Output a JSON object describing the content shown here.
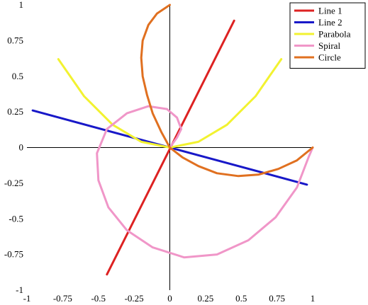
{
  "chart_data": {
    "type": "line",
    "title": "",
    "xlabel": "",
    "ylabel": "",
    "xlim": [
      -1,
      1
    ],
    "ylim": [
      -1,
      1
    ],
    "grid": false,
    "axes_through_origin": true,
    "legend_position": "top-right",
    "x_ticks": [
      "-1",
      "-0.75",
      "-0.5",
      "-0.25",
      "0",
      "0.25",
      "0.5",
      "0.75",
      "1"
    ],
    "y_ticks": [
      "1",
      "0.75",
      "0.5",
      "0.25",
      "0",
      "-0.25",
      "-0.5",
      "-0.75",
      "-1"
    ],
    "series": [
      {
        "name": "Line 1",
        "color": "#dd2222",
        "points": [
          [
            -0.44,
            -0.89
          ],
          [
            0.45,
            0.89
          ]
        ]
      },
      {
        "name": "Line 2",
        "color": "#1818c8",
        "points": [
          [
            -0.96,
            0.26
          ],
          [
            0.96,
            -0.26
          ]
        ]
      },
      {
        "name": "Parabola",
        "color": "#f2f230",
        "points": [
          [
            -0.78,
            0.62
          ],
          [
            -0.6,
            0.36
          ],
          [
            -0.4,
            0.16
          ],
          [
            -0.2,
            0.04
          ],
          [
            0,
            0
          ],
          [
            0.2,
            0.04
          ],
          [
            0.4,
            0.16
          ],
          [
            0.6,
            0.36
          ],
          [
            0.78,
            0.62
          ]
        ]
      },
      {
        "name": "Spiral",
        "color": "#f096c8",
        "points": [
          [
            0,
            0
          ],
          [
            0.05,
            0.07
          ],
          [
            0.08,
            0.13
          ],
          [
            0.05,
            0.21
          ],
          [
            -0.02,
            0.27
          ],
          [
            -0.15,
            0.29
          ],
          [
            -0.3,
            0.24
          ],
          [
            -0.44,
            0.13
          ],
          [
            -0.51,
            -0.04
          ],
          [
            -0.5,
            -0.23
          ],
          [
            -0.43,
            -0.42
          ],
          [
            -0.3,
            -0.58
          ],
          [
            -0.12,
            -0.7
          ],
          [
            0.1,
            -0.77
          ],
          [
            0.33,
            -0.75
          ],
          [
            0.55,
            -0.65
          ],
          [
            0.74,
            -0.49
          ],
          [
            0.89,
            -0.28
          ],
          [
            0.97,
            -0.07
          ],
          [
            1.0,
            0.0
          ]
        ]
      },
      {
        "name": "Circle",
        "color": "#e07020",
        "points": [
          [
            0,
            1
          ],
          [
            -0.09,
            0.94
          ],
          [
            -0.15,
            0.86
          ],
          [
            -0.19,
            0.75
          ],
          [
            -0.2,
            0.63
          ],
          [
            -0.19,
            0.5
          ],
          [
            -0.16,
            0.37
          ],
          [
            -0.12,
            0.24
          ],
          [
            -0.06,
            0.11
          ],
          [
            0,
            0
          ],
          [
            0.09,
            -0.07
          ],
          [
            0.2,
            -0.13
          ],
          [
            0.33,
            -0.18
          ],
          [
            0.48,
            -0.2
          ],
          [
            0.62,
            -0.19
          ],
          [
            0.76,
            -0.15
          ],
          [
            0.89,
            -0.09
          ],
          [
            1.0,
            0.0
          ]
        ]
      }
    ]
  }
}
